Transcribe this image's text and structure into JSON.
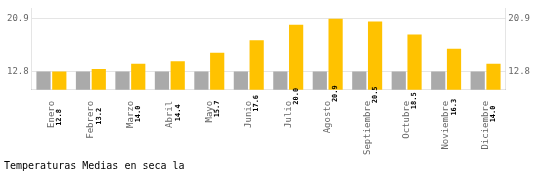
{
  "chart_data": {
    "type": "bar",
    "title": "Temperaturas Medias en seca la",
    "categories": [
      "Enero",
      "Febrero",
      "Marzo",
      "Abril",
      "Mayo",
      "Junio",
      "Julio",
      "Agosto",
      "Septiembre",
      "Octubre",
      "Noviembre",
      "Diciembre"
    ],
    "series": [
      {
        "color": "#AAAAAA",
        "values": [
          12.8,
          12.8,
          12.8,
          12.8,
          12.8,
          12.8,
          12.8,
          12.8,
          12.8,
          12.8,
          12.8,
          12.8
        ]
      },
      {
        "color": "#FFC200",
        "values": [
          12.8,
          13.2,
          14.0,
          14.4,
          15.7,
          17.6,
          20.0,
          20.9,
          20.5,
          18.5,
          16.3,
          14.0
        ],
        "data_labels": true,
        "value_labels": [
          "12.8",
          "13.2",
          "14.0",
          "14.4",
          "15.7",
          "17.6",
          "20.0",
          "20.9",
          "20.5",
          "18.5",
          "16.3",
          "14.0"
        ]
      }
    ],
    "ylim": [
      10.0,
      22.5
    ],
    "yticks": [
      12.8,
      20.9
    ],
    "y2lim": [
      10.0,
      22.5
    ],
    "y2ticks": [
      12.8,
      20.9
    ],
    "grid": true
  }
}
